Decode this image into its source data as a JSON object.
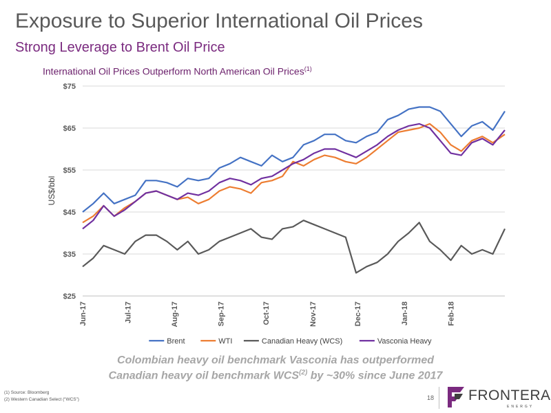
{
  "slide": {
    "title": "Exposure to Superior International Oil Prices",
    "subtitle": "Strong Leverage to Brent Oil Price",
    "tagline_line1": "Colombian heavy oil benchmark Vasconia has outperformed",
    "tagline_line2_pre": "Canadian heavy oil benchmark WCS",
    "tagline_line2_sup": "(2)",
    "tagline_line2_post": " by ~30% since June 2017",
    "footnote_1": "(1)   Source: Bloomberg",
    "footnote_2": "(2)   Western Canadian Select (“WCS”)",
    "page_number": "18",
    "logo_text": "FRONTERA",
    "logo_subtext": "ENERGY"
  },
  "colors": {
    "Brent": "#4472c4",
    "WTI": "#ed7d31",
    "Canadian Heavy (WCS)": "#595959",
    "Vasconia Heavy": "#7030a0",
    "title": "#595959",
    "subtitle": "#7a2a7f",
    "logo_accent": "#7a2a7f"
  },
  "chart_data": {
    "type": "line",
    "title": "International Oil Prices Outperform North American Oil Prices",
    "title_sup": "(1)",
    "ylabel": "US$/bbl",
    "xlabel": "",
    "ylim": [
      25,
      75
    ],
    "y_ticks": [
      "$25",
      "$35",
      "$45",
      "$55",
      "$65",
      "$75"
    ],
    "y_tick_values": [
      25,
      35,
      45,
      55,
      65,
      75
    ],
    "x_range": [
      "2017-06-01",
      "2018-03-09"
    ],
    "x_tick_labels": [
      "Jun-17",
      "Jul-17",
      "Aug-17",
      "Sep-17",
      "Oct-17",
      "Nov-17",
      "Dec-17",
      "Jan-18",
      "Feb-18"
    ],
    "x_tick_dates": [
      "2017-06-01",
      "2017-07-01",
      "2017-08-01",
      "2017-09-01",
      "2017-10-01",
      "2017-11-01",
      "2017-12-01",
      "2018-01-01",
      "2018-02-01"
    ],
    "grid": true,
    "legend_position": "bottom",
    "x": [
      "2017-06-01",
      "2017-06-08",
      "2017-06-15",
      "2017-06-22",
      "2017-06-29",
      "2017-07-06",
      "2017-07-13",
      "2017-07-20",
      "2017-07-27",
      "2017-08-03",
      "2017-08-10",
      "2017-08-17",
      "2017-08-24",
      "2017-08-31",
      "2017-09-07",
      "2017-09-14",
      "2017-09-21",
      "2017-09-28",
      "2017-10-05",
      "2017-10-12",
      "2017-10-19",
      "2017-10-26",
      "2017-11-02",
      "2017-11-09",
      "2017-11-16",
      "2017-11-23",
      "2017-11-30",
      "2017-12-07",
      "2017-12-14",
      "2017-12-21",
      "2017-12-28",
      "2018-01-04",
      "2018-01-11",
      "2018-01-18",
      "2018-01-25",
      "2018-02-01",
      "2018-02-08",
      "2018-02-15",
      "2018-02-22",
      "2018-03-01",
      "2018-03-09"
    ],
    "series": [
      {
        "name": "Brent",
        "values": [
          45,
          47,
          49.5,
          47,
          48,
          49,
          52.5,
          52.5,
          52,
          51,
          53,
          52.5,
          53,
          55.5,
          56.5,
          58,
          57,
          56,
          58.5,
          57,
          58,
          61,
          62,
          63.5,
          63.5,
          62,
          61.5,
          63,
          64,
          67,
          68,
          69.5,
          70,
          70,
          69,
          66,
          63,
          65.5,
          66.5,
          64.5,
          69
        ]
      },
      {
        "name": "WTI",
        "values": [
          42.5,
          44,
          46.5,
          44,
          46,
          47.5,
          49.5,
          50,
          49,
          48,
          48.5,
          47,
          48,
          50,
          51,
          50.5,
          49.5,
          52,
          52.5,
          53.5,
          57,
          56,
          57.5,
          58.5,
          58,
          57,
          56.5,
          58,
          60,
          62,
          64,
          64.5,
          65,
          66,
          64,
          61,
          59.5,
          62,
          63,
          61.5,
          63.5
        ]
      },
      {
        "name": "Canadian Heavy (WCS)",
        "values": [
          32,
          34,
          37,
          36,
          35,
          38,
          39.5,
          39.5,
          38,
          36,
          38,
          35,
          36,
          38,
          39,
          40,
          41,
          39,
          38.5,
          41,
          41.5,
          43,
          42,
          41,
          40,
          39,
          30.5,
          32,
          33,
          35,
          38,
          40,
          42.5,
          38,
          36,
          33.5,
          37,
          35,
          36,
          35,
          41
        ]
      },
      {
        "name": "Vasconia Heavy",
        "values": [
          41,
          43,
          46.5,
          44,
          45.5,
          47.5,
          49.5,
          50,
          49,
          48,
          49.5,
          49,
          50,
          52,
          53,
          52.5,
          51.5,
          53,
          53.5,
          55,
          56.5,
          57.5,
          59,
          60,
          60,
          59,
          58,
          59.5,
          61,
          63,
          64.5,
          65.5,
          66,
          65,
          62,
          59,
          58.5,
          61.5,
          62.5,
          61,
          64.5
        ]
      }
    ]
  }
}
